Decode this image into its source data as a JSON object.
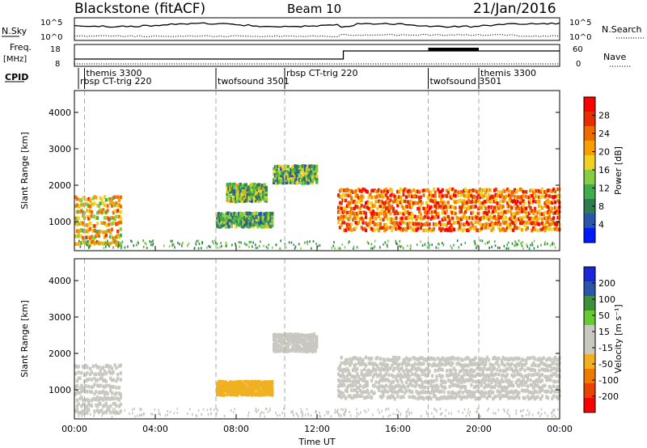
{
  "header": {
    "station": "Blackstone (fitACF)",
    "beam": "Beam 10",
    "date": "21/Jan/2016"
  },
  "noise_panel": {
    "left_label": "N.Sky",
    "right_label": "N.Search",
    "left_ticks": [
      "10^5",
      "10^0"
    ],
    "right_ticks": [
      "10^5",
      "10^0"
    ]
  },
  "freq_panel": {
    "left_label_1": "Freq.",
    "left_label_2": "[MHz]",
    "right_label": "Nave",
    "left_ticks": [
      "18",
      "8"
    ],
    "right_ticks": [
      "60",
      "0"
    ]
  },
  "cpid_panel": {
    "label": "CPID",
    "programs": [
      {
        "text": "themis 3300",
        "t": 0.5,
        "row": 1
      },
      {
        "text": "rbsp CT-trig 220",
        "t": 0.2,
        "row": 2
      },
      {
        "text": "twofsound 3501",
        "t": 7.0,
        "row": 2
      },
      {
        "text": "rbsp CT-trig 220",
        "t": 10.4,
        "row": 1
      },
      {
        "text": "twofsound 3501",
        "t": 17.5,
        "row": 2
      },
      {
        "text": "themis 3300",
        "t": 20.0,
        "row": 1
      }
    ]
  },
  "colors": {
    "power_scale": [
      "#0019ff",
      "#2a55a8",
      "#2e7d4f",
      "#3fae4a",
      "#88cc44",
      "#f0d020",
      "#f5a000",
      "#f06a00",
      "#e82d00",
      "#ff0000"
    ],
    "velocity_scale": [
      "#1a26d8",
      "#2a55a8",
      "#3f8f3f",
      "#66cc33",
      "#c8c8c0",
      "#c8c8c0",
      "#f0b020",
      "#f07a00",
      "#e84400",
      "#ff0000"
    ]
  },
  "chart_data": [
    {
      "type": "heatmap",
      "panel": "power",
      "ylabel": "Slant Range [km]",
      "yticks": [
        "1000",
        "2000",
        "3000",
        "4000"
      ],
      "ylim": [
        200,
        4600
      ],
      "xlim": [
        0,
        24
      ],
      "colorbar_label": "Power [dB]",
      "colorbar_ticks": [
        "4",
        "8",
        "12",
        "16",
        "20",
        "24",
        "28"
      ],
      "clim": [
        0,
        30
      ],
      "features": [
        {
          "t": [
            0.0,
            2.3
          ],
          "range": [
            400,
            1800
          ],
          "value": 18
        },
        {
          "t": [
            7.0,
            9.8
          ],
          "range": [
            900,
            1300
          ],
          "value": 10
        },
        {
          "t": [
            7.5,
            9.5
          ],
          "range": [
            1600,
            2100
          ],
          "value": 12
        },
        {
          "t": [
            9.8,
            12.0
          ],
          "range": [
            2100,
            2600
          ],
          "value": 11
        },
        {
          "t": [
            13.0,
            24.0
          ],
          "range": [
            800,
            2000
          ],
          "value": 22
        }
      ]
    },
    {
      "type": "heatmap",
      "panel": "velocity",
      "ylabel": "Slant Range [km]",
      "yticks": [
        "1000",
        "2000",
        "3000",
        "4000"
      ],
      "ylim": [
        200,
        4600
      ],
      "xlim": [
        0,
        24
      ],
      "xlabel": "Time UT",
      "xticks": [
        "00:00",
        "04:00",
        "08:00",
        "12:00",
        "16:00",
        "20:00",
        "00:00"
      ],
      "colorbar_label": "Velocity [m s⁻¹]",
      "colorbar_ticks": [
        "200",
        "100",
        "50",
        "15",
        "-15",
        "-50",
        "-100",
        "-200"
      ],
      "clim": [
        -250,
        250
      ],
      "features": [
        {
          "t": [
            0.0,
            2.3
          ],
          "range": [
            400,
            1800
          ],
          "value": -40
        },
        {
          "t": [
            7.0,
            9.8
          ],
          "range": [
            900,
            1300
          ],
          "value": -60
        },
        {
          "t": [
            9.8,
            12.0
          ],
          "range": [
            2100,
            2600
          ],
          "value": 0
        },
        {
          "t": [
            13.0,
            24.0
          ],
          "range": [
            800,
            2000
          ],
          "value": 0
        }
      ]
    }
  ]
}
